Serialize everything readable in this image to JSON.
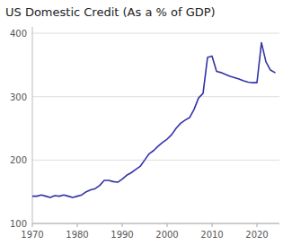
{
  "chart_data": {
    "type": "line",
    "title": "US Domestic Credit (As a % of GDP)",
    "x": [
      1970,
      1971,
      1972,
      1973,
      1974,
      1975,
      1976,
      1977,
      1978,
      1979,
      1980,
      1981,
      1982,
      1983,
      1984,
      1985,
      1986,
      1987,
      1988,
      1989,
      1990,
      1991,
      1992,
      1993,
      1994,
      1995,
      1996,
      1997,
      1998,
      1999,
      2000,
      2001,
      2002,
      2003,
      2004,
      2005,
      2006,
      2007,
      2008,
      2009,
      2010,
      2011,
      2012,
      2013,
      2014,
      2015,
      2016,
      2017,
      2018,
      2019,
      2020,
      2021,
      2022,
      2023,
      2024
    ],
    "values": [
      143,
      143,
      145,
      143,
      141,
      144,
      143,
      145,
      143,
      141,
      143,
      145,
      150,
      153,
      155,
      160,
      168,
      168,
      166,
      165,
      170,
      176,
      180,
      185,
      190,
      200,
      210,
      215,
      222,
      228,
      233,
      240,
      250,
      258,
      263,
      267,
      280,
      298,
      305,
      362,
      364,
      340,
      338,
      335,
      332,
      330,
      328,
      325,
      323,
      322,
      322,
      385,
      355,
      342,
      338
    ],
    "color": "#3333aa",
    "xlim": [
      1970,
      2025
    ],
    "ylim": [
      100,
      410
    ],
    "xticks": [
      1970,
      1980,
      1990,
      2000,
      2010,
      2020
    ],
    "yticks": [
      100,
      200,
      300,
      400
    ],
    "grid": true
  }
}
